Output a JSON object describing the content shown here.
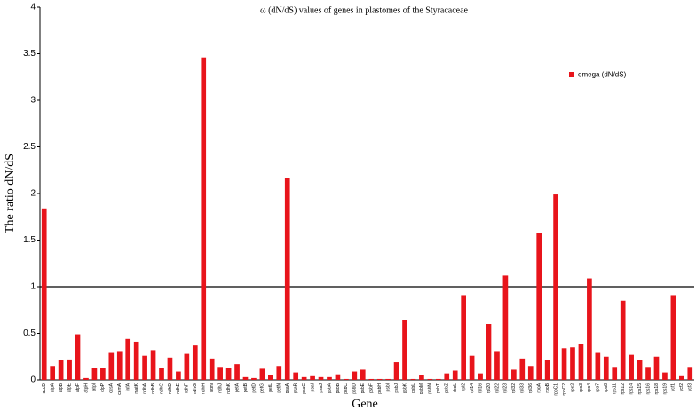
{
  "chart_data": {
    "type": "bar",
    "title": "ω (dN/dS) values of genes in plastomes of the Styracaceae",
    "xlabel": "Gene",
    "ylabel": "The ratio dN/dS",
    "categories": [
      "accD",
      "atpA",
      "atpB",
      "atpE",
      "atpF",
      "atpH",
      "atpI",
      "clpP",
      "ccsA",
      "cemA",
      "infA",
      "matK",
      "ndhA",
      "ndhB",
      "ndhC",
      "ndhD",
      "ndhE",
      "ndhF",
      "ndhG",
      "ndhH",
      "ndhI",
      "ndhJ",
      "ndhK",
      "petA",
      "petB",
      "petD",
      "petG",
      "petL",
      "petN",
      "psaA",
      "psaB",
      "psaC",
      "psaI",
      "psaJ",
      "psbA",
      "psbB",
      "psbC",
      "psbD",
      "psbE",
      "psbF",
      "psbH",
      "psbI",
      "psbJ",
      "psbK",
      "psbL",
      "psbM",
      "psbN",
      "psbT",
      "psbZ",
      "rbcL",
      "rpl2",
      "rpl14",
      "rpl16",
      "rpl20",
      "rpl22",
      "rpl23",
      "rpl32",
      "rpl33",
      "rpl36",
      "rpoA",
      "rpoB",
      "rpoC1",
      "rpoC2",
      "rps2",
      "rps3",
      "rps4",
      "rps7",
      "rps8",
      "rps11",
      "rps12",
      "rps14",
      "rps15",
      "rps16",
      "rps18",
      "rps19",
      "ycf1",
      "ycf2",
      "ycf3"
    ],
    "series": [
      {
        "name": "omega (dN/dS)",
        "color": "#e8141b",
        "values": [
          1.84,
          0.15,
          0.21,
          0.22,
          0.49,
          0.02,
          0.13,
          0.13,
          0.29,
          0.31,
          0.44,
          0.41,
          0.26,
          0.32,
          0.13,
          0.24,
          0.09,
          0.28,
          0.37,
          3.46,
          0.23,
          0.14,
          0.13,
          0.17,
          0.03,
          0.02,
          0.12,
          0.05,
          0.15,
          2.17,
          0.08,
          0.03,
          0.04,
          0.03,
          0.03,
          0.06,
          0.01,
          0.09,
          0.11,
          0.01,
          0.01,
          0.01,
          0.19,
          0.64,
          0.01,
          0.05,
          0.01,
          0.01,
          0.07,
          0.1,
          0.91,
          0.26,
          0.07,
          0.6,
          0.31,
          1.12,
          0.11,
          0.23,
          0.15,
          1.58,
          0.21,
          1.99,
          0.34,
          0.35,
          0.39,
          1.09,
          0.29,
          0.25,
          0.14,
          0.85,
          0.27,
          0.21,
          0.14,
          0.25,
          0.08,
          0.91,
          0.04,
          0.14
        ]
      }
    ],
    "ylim": [
      0,
      4
    ],
    "yticks": [
      0,
      0.5,
      1,
      1.5,
      2,
      2.5,
      3,
      3.5,
      4
    ],
    "hline": 1,
    "legend": "upper right"
  }
}
